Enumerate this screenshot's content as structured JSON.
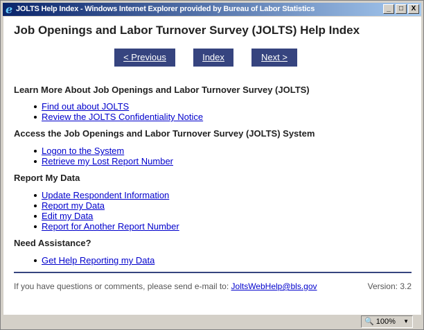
{
  "window": {
    "title": "JOLTS Help Index - Windows Internet Explorer provided by Bureau of Labor Statistics",
    "minimize": "_",
    "maximize": "□",
    "close": "X"
  },
  "page": {
    "title": "Job Openings and Labor Turnover Survey (JOLTS) Help Index"
  },
  "nav": {
    "previous": "< Previous",
    "index": "Index",
    "next": "Next >"
  },
  "sections": [
    {
      "heading": "Learn More About Job Openings and Labor Turnover Survey (JOLTS)",
      "links": [
        "Find out about JOLTS",
        "Review the JOLTS Confidentiality Notice"
      ]
    },
    {
      "heading": "Access the Job Openings and Labor Turnover Survey (JOLTS) System",
      "links": [
        "Logon to the System",
        "Retrieve my Lost Report Number"
      ]
    },
    {
      "heading": "Report My Data",
      "links": [
        "Update Respondent Information",
        "Report my Data",
        "Edit my Data",
        "Report for Another Report Number"
      ]
    },
    {
      "heading": "Need Assistance?",
      "links": [
        "Get Help Reporting my Data"
      ]
    }
  ],
  "footer": {
    "text": "If you have questions or comments, please send e-mail to:",
    "email": "JoltsWebHelp@bls.gov",
    "version": "Version: 3.2"
  },
  "status": {
    "zoom": "100%"
  },
  "colors": {
    "button": "#36447f",
    "link": "#0000cc"
  }
}
